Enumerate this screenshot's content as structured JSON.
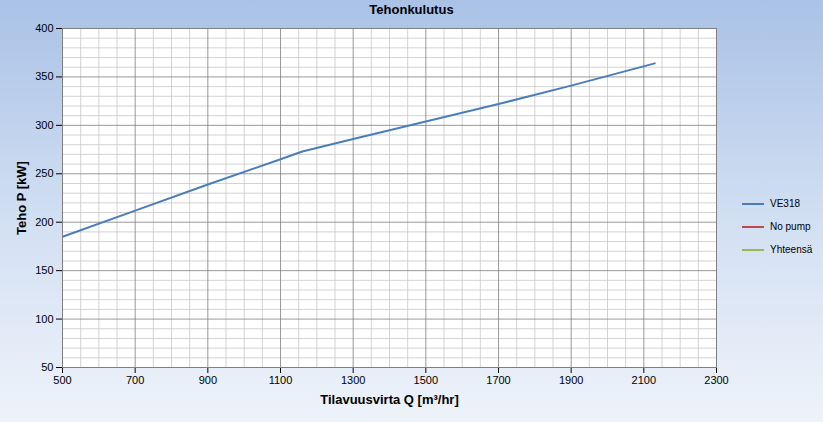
{
  "chart_data": {
    "type": "line",
    "title": "Tehonkulutus",
    "x_label": "Tilavuusvirta Q [m³/hr]",
    "y_label": "Teho P [kW]",
    "x": [
      500,
      700,
      900,
      1100,
      1160,
      1300,
      1500,
      1700,
      1900,
      2130
    ],
    "series": [
      {
        "name": "VE318",
        "color": "#4a7ebb",
        "values": [
          185,
          212,
          239,
          265,
          273,
          286,
          304,
          322,
          341,
          364
        ]
      },
      {
        "name": "No pump",
        "color": "#be4b48",
        "values": [
          null,
          null,
          null,
          null,
          null,
          null,
          null,
          null,
          null,
          null
        ]
      },
      {
        "name": "Yhteensä",
        "color": "#98b954",
        "values": [
          null,
          null,
          null,
          null,
          null,
          null,
          null,
          null,
          null,
          null
        ]
      }
    ],
    "xlim": [
      500,
      2300
    ],
    "xticks": [
      500,
      700,
      900,
      1100,
      1300,
      1500,
      1700,
      1900,
      2100,
      2300
    ],
    "ylim": [
      50,
      400
    ],
    "yticks": [
      50,
      100,
      150,
      200,
      250,
      300,
      350,
      400
    ],
    "grid": true,
    "legend": "right"
  }
}
